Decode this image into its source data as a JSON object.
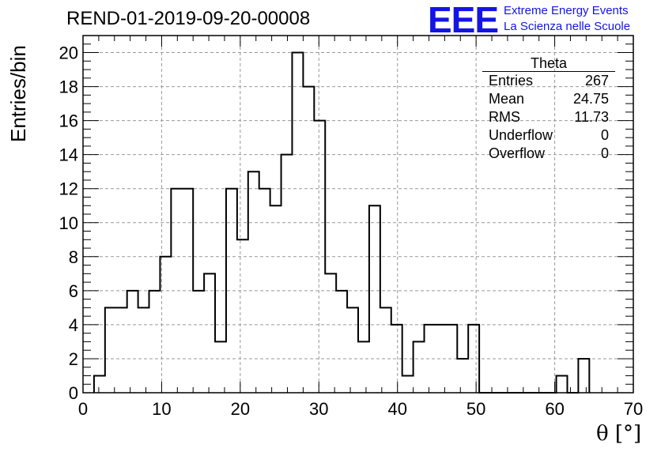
{
  "chart_data": {
    "type": "bar",
    "title": "REND-01-2019-09-20-00008",
    "xlabel": "θ [°]",
    "ylabel": "Entries/bin",
    "xlim": [
      0,
      70
    ],
    "ylim": [
      0,
      21
    ],
    "grid": true,
    "bin_width": 1.4,
    "bin_start": 1.4,
    "values": [
      1,
      5,
      5,
      6,
      5,
      6,
      8,
      12,
      12,
      6,
      7,
      3,
      12,
      9,
      13,
      12,
      11,
      14,
      20,
      18,
      16,
      7,
      6,
      5,
      3,
      11,
      5,
      4,
      1,
      3,
      4,
      4,
      4,
      2,
      4,
      0,
      0,
      0,
      0,
      0,
      0,
      0,
      1,
      0,
      2
    ],
    "x_ticks": [
      "0",
      "10",
      "20",
      "30",
      "40",
      "50",
      "60",
      "70"
    ],
    "y_ticks": [
      "0",
      "2",
      "4",
      "6",
      "8",
      "10",
      "12",
      "14",
      "16",
      "18",
      "20"
    ],
    "stats": {
      "title": "Theta",
      "rows": [
        {
          "label": "Entries",
          "value": "267"
        },
        {
          "label": "Mean",
          "value": "24.75"
        },
        {
          "label": "RMS",
          "value": "11.73"
        },
        {
          "label": "Underflow",
          "value": "0"
        },
        {
          "label": "Overflow",
          "value": "0"
        }
      ]
    }
  },
  "logo": {
    "mark": "EEE",
    "line1": "Extreme Energy Events",
    "line2": "La Scienza nelle Scuole"
  },
  "colors": {
    "logo": "#1414e6",
    "line": "#000000",
    "grid": "#999999"
  }
}
